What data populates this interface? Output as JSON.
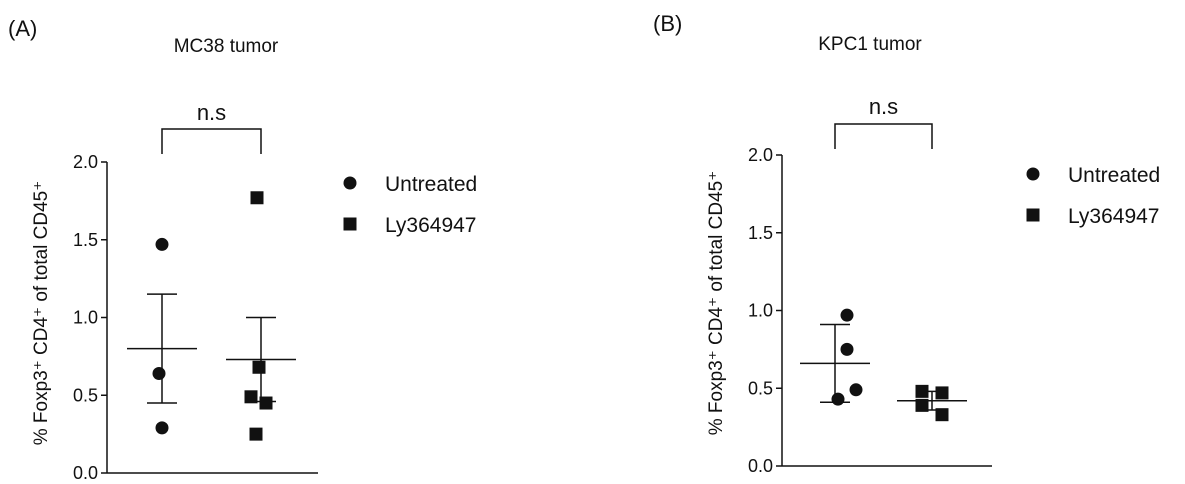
{
  "chart_data": [
    {
      "panel_label": "(A)",
      "type": "scatter",
      "title": "MC38 tumor",
      "xlabel": "",
      "ylabel": "% Foxp3⁺ CD4⁺ of total CD45⁺",
      "ylim": [
        0,
        2.0
      ],
      "yticks": [
        "0.0",
        "0.5",
        "1.0",
        "1.5",
        "2.0"
      ],
      "significance": "n.s",
      "legend_position": "right",
      "series": [
        {
          "name": "Untreated",
          "marker": "circle",
          "values": [
            1.47,
            0.64,
            0.29
          ],
          "mean": 0.8,
          "sem_upper": 1.15,
          "sem_lower": 0.45
        },
        {
          "name": "Ly364947",
          "marker": "square",
          "values": [
            1.77,
            0.68,
            0.49,
            0.45,
            0.25
          ],
          "mean": 0.73,
          "sem_upper": 1.0,
          "sem_lower": 0.46
        }
      ]
    },
    {
      "panel_label": "(B)",
      "type": "scatter",
      "title": "KPC1 tumor",
      "xlabel": "",
      "ylabel": "% Foxp3⁺ CD4⁺ of total CD45⁺",
      "ylim": [
        0,
        2.0
      ],
      "yticks": [
        "0.0",
        "0.5",
        "1.0",
        "1.5",
        "2.0"
      ],
      "significance": "n.s",
      "legend_position": "right",
      "series": [
        {
          "name": "Untreated",
          "marker": "circle",
          "values": [
            0.97,
            0.75,
            0.49,
            0.43
          ],
          "mean": 0.66,
          "sem_upper": 0.91,
          "sem_lower": 0.41
        },
        {
          "name": "Ly364947",
          "marker": "square",
          "values": [
            0.48,
            0.47,
            0.39,
            0.33
          ],
          "mean": 0.42,
          "sem_upper": 0.48,
          "sem_lower": 0.36
        }
      ]
    }
  ]
}
